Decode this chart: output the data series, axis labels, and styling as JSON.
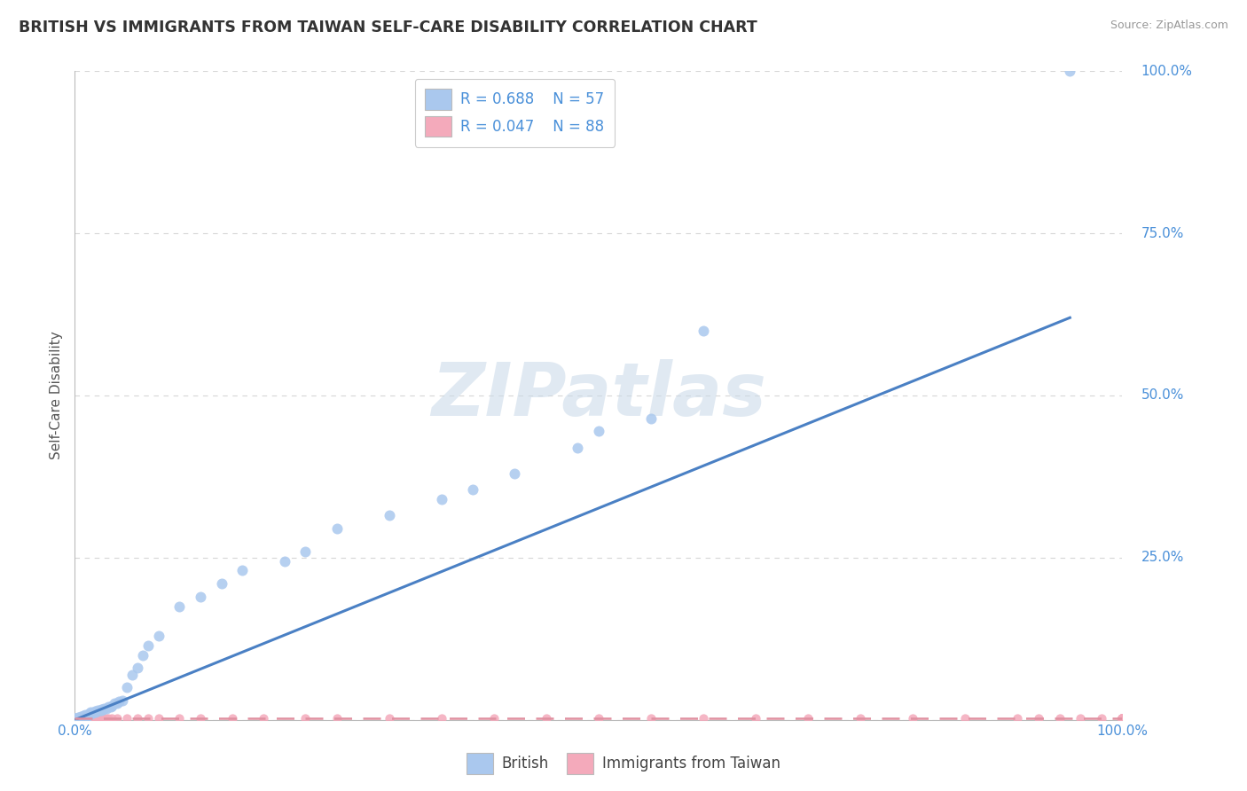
{
  "title": "BRITISH VS IMMIGRANTS FROM TAIWAN SELF-CARE DISABILITY CORRELATION CHART",
  "source": "Source: ZipAtlas.com",
  "ylabel": "Self-Care Disability",
  "watermark_text": "ZIPatlas",
  "british_R": 0.688,
  "british_N": 57,
  "taiwan_R": 0.047,
  "taiwan_N": 88,
  "british_color": "#aac8ee",
  "taiwan_color": "#f4aabb",
  "british_line_color": "#4a80c4",
  "taiwan_line_color": "#e090a0",
  "legend_blue_text": "#4a90d9",
  "title_color": "#333333",
  "background_color": "#ffffff",
  "grid_color": "#cccccc",
  "xlim": [
    0,
    1
  ],
  "ylim": [
    0,
    1
  ],
  "british_x": [
    0.0,
    0.0,
    0.0,
    0.002,
    0.003,
    0.004,
    0.005,
    0.006,
    0.007,
    0.008,
    0.01,
    0.01,
    0.012,
    0.013,
    0.014,
    0.015,
    0.015,
    0.017,
    0.018,
    0.019,
    0.02,
    0.022,
    0.024,
    0.025,
    0.025,
    0.027,
    0.028,
    0.03,
    0.032,
    0.034,
    0.035,
    0.038,
    0.04,
    0.042,
    0.045,
    0.05,
    0.055,
    0.06,
    0.065,
    0.07,
    0.08,
    0.1,
    0.12,
    0.14,
    0.16,
    0.2,
    0.22,
    0.25,
    0.3,
    0.35,
    0.38,
    0.42,
    0.48,
    0.5,
    0.55,
    0.6,
    0.95
  ],
  "british_y": [
    0.0,
    0.002,
    0.003,
    0.002,
    0.004,
    0.003,
    0.004,
    0.005,
    0.005,
    0.006,
    0.005,
    0.008,
    0.007,
    0.009,
    0.008,
    0.01,
    0.012,
    0.011,
    0.012,
    0.013,
    0.012,
    0.015,
    0.014,
    0.015,
    0.016,
    0.016,
    0.018,
    0.018,
    0.02,
    0.02,
    0.022,
    0.025,
    0.025,
    0.028,
    0.03,
    0.05,
    0.07,
    0.08,
    0.1,
    0.115,
    0.13,
    0.175,
    0.19,
    0.21,
    0.23,
    0.245,
    0.26,
    0.295,
    0.315,
    0.34,
    0.355,
    0.38,
    0.42,
    0.445,
    0.465,
    0.6,
    1.0
  ],
  "taiwan_x": [
    0.0,
    0.0,
    0.0,
    0.0,
    0.0,
    0.0,
    0.0,
    0.0,
    0.0,
    0.0,
    0.0,
    0.0,
    0.0,
    0.0,
    0.0,
    0.0,
    0.0,
    0.0,
    0.0,
    0.0,
    0.0,
    0.0,
    0.0,
    0.0,
    0.001,
    0.002,
    0.003,
    0.003,
    0.004,
    0.004,
    0.005,
    0.005,
    0.006,
    0.007,
    0.008,
    0.009,
    0.01,
    0.01,
    0.012,
    0.013,
    0.015,
    0.015,
    0.018,
    0.02,
    0.02,
    0.022,
    0.025,
    0.028,
    0.03,
    0.032,
    0.035,
    0.04,
    0.05,
    0.06,
    0.07,
    0.08,
    0.1,
    0.12,
    0.15,
    0.18,
    0.22,
    0.25,
    0.3,
    0.35,
    0.4,
    0.45,
    0.5,
    0.55,
    0.6,
    0.65,
    0.7,
    0.75,
    0.8,
    0.85,
    0.9,
    0.92,
    0.94,
    0.96,
    0.98,
    1.0,
    1.0,
    1.0,
    1.0,
    1.0,
    1.0,
    1.0,
    1.0,
    1.0
  ],
  "taiwan_y": [
    0.0,
    0.0,
    0.0,
    0.0,
    0.0,
    0.0,
    0.0,
    0.0,
    0.0,
    0.0,
    0.0,
    0.0,
    0.0,
    0.0,
    0.0,
    0.0,
    0.0,
    0.0,
    0.0,
    0.0,
    0.0,
    0.0,
    0.0,
    0.0,
    0.001,
    0.001,
    0.001,
    0.002,
    0.001,
    0.002,
    0.001,
    0.002,
    0.002,
    0.001,
    0.002,
    0.002,
    0.002,
    0.003,
    0.002,
    0.002,
    0.002,
    0.003,
    0.002,
    0.002,
    0.003,
    0.003,
    0.003,
    0.003,
    0.003,
    0.003,
    0.003,
    0.003,
    0.003,
    0.003,
    0.003,
    0.003,
    0.003,
    0.003,
    0.003,
    0.003,
    0.003,
    0.003,
    0.003,
    0.003,
    0.003,
    0.003,
    0.003,
    0.003,
    0.003,
    0.003,
    0.003,
    0.003,
    0.003,
    0.003,
    0.003,
    0.003,
    0.003,
    0.003,
    0.003,
    0.003,
    0.003,
    0.003,
    0.003,
    0.003,
    0.003,
    0.003,
    0.003,
    0.003
  ],
  "brit_line_x": [
    0.0,
    0.95
  ],
  "brit_line_y": [
    0.0,
    0.62
  ],
  "taiwan_line_x": [
    0.0,
    1.0
  ],
  "taiwan_line_y": [
    0.003,
    0.003
  ]
}
